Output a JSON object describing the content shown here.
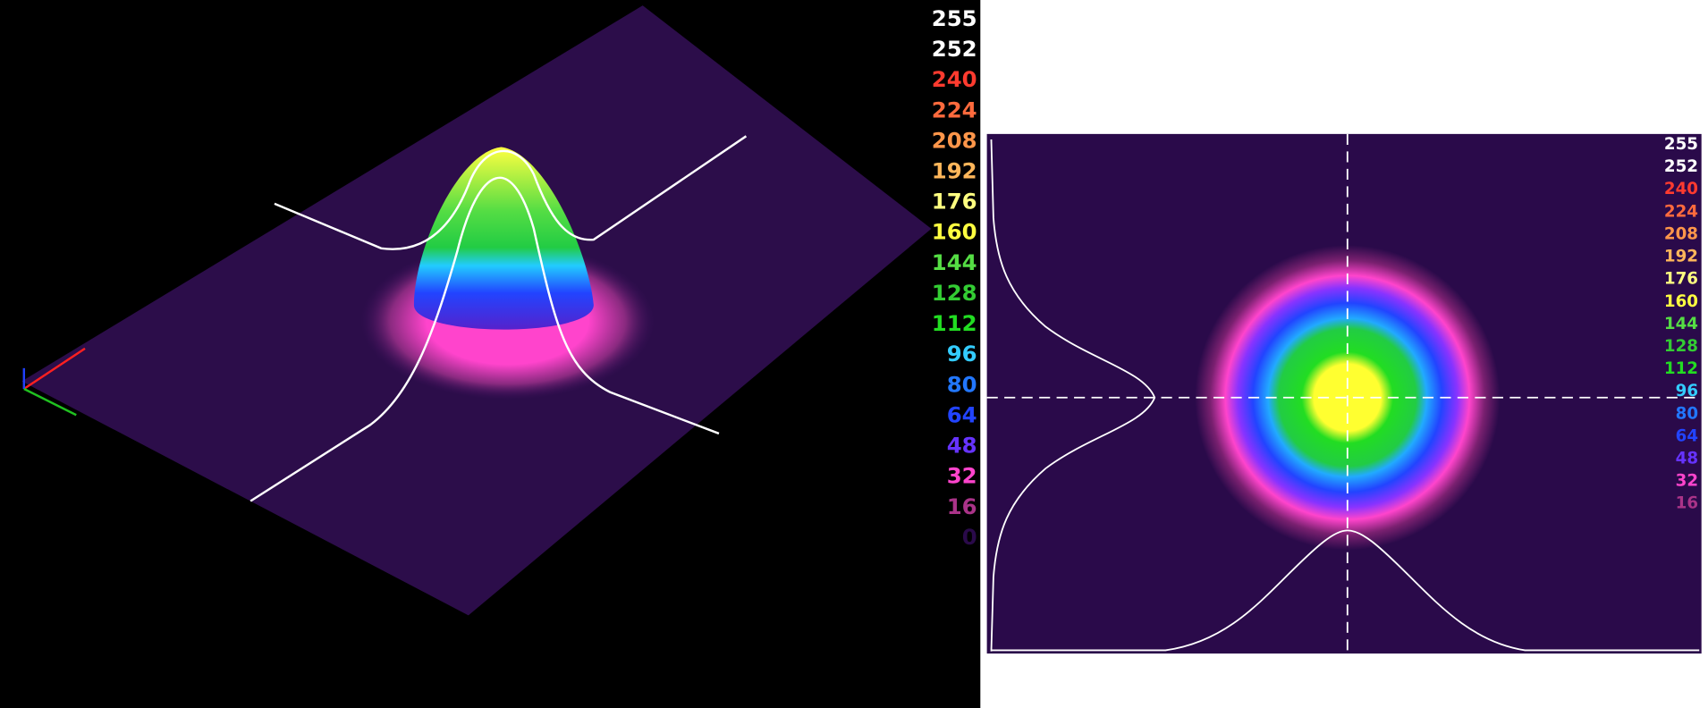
{
  "left_panel": {
    "scale": [
      {
        "label": 255,
        "color": "#ffffff"
      },
      {
        "label": 252,
        "color": "#ffffff"
      },
      {
        "label": 240,
        "color": "#ff3b2f"
      },
      {
        "label": 224,
        "color": "#ff6a3d"
      },
      {
        "label": 208,
        "color": "#ff964a"
      },
      {
        "label": 192,
        "color": "#ffb65a"
      },
      {
        "label": 176,
        "color": "#ffff80"
      },
      {
        "label": 160,
        "color": "#ffff40"
      },
      {
        "label": 144,
        "color": "#55dd44"
      },
      {
        "label": 128,
        "color": "#33cc33"
      },
      {
        "label": 112,
        "color": "#22dd22"
      },
      {
        "label": 96,
        "color": "#33ccff"
      },
      {
        "label": 80,
        "color": "#2277ff"
      },
      {
        "label": 64,
        "color": "#2244ff"
      },
      {
        "label": 48,
        "color": "#6633ff"
      },
      {
        "label": 32,
        "color": "#ff44cc"
      },
      {
        "label": 16,
        "color": "#aa3388"
      },
      {
        "label": 0,
        "color": "#2a0a4a"
      }
    ]
  },
  "right_panel": {
    "scale": [
      {
        "label": 255,
        "color": "#ffffff"
      },
      {
        "label": 252,
        "color": "#ffffff"
      },
      {
        "label": 240,
        "color": "#ff3b2f"
      },
      {
        "label": 224,
        "color": "#ff6a3d"
      },
      {
        "label": 208,
        "color": "#ff964a"
      },
      {
        "label": 192,
        "color": "#ffb65a"
      },
      {
        "label": 176,
        "color": "#ffff80"
      },
      {
        "label": 160,
        "color": "#ffff40"
      },
      {
        "label": 144,
        "color": "#55dd44"
      },
      {
        "label": 128,
        "color": "#33cc33"
      },
      {
        "label": 112,
        "color": "#22dd22"
      },
      {
        "label": 96,
        "color": "#33ccff"
      },
      {
        "label": 80,
        "color": "#2277ff"
      },
      {
        "label": 64,
        "color": "#2244ff"
      },
      {
        "label": 48,
        "color": "#6633ff"
      },
      {
        "label": 32,
        "color": "#ff44cc"
      },
      {
        "label": 16,
        "color": "#aa3388"
      }
    ]
  }
}
